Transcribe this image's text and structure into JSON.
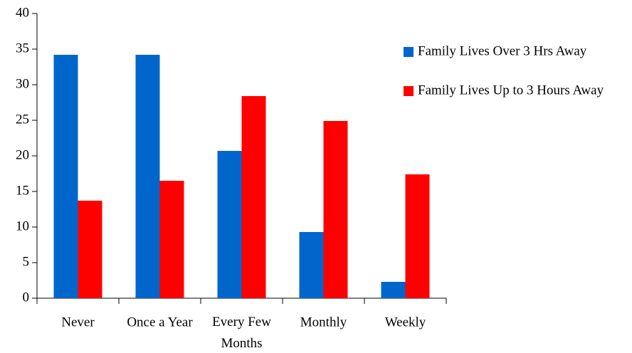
{
  "chart_data": {
    "type": "bar",
    "categories": [
      "Never",
      "Once a Year",
      "Every Few Months",
      "Monthly",
      "Weekly"
    ],
    "series": [
      {
        "name": "Family Lives Over 3 Hrs Away",
        "color": "#0066cc",
        "values": [
          34.2,
          34.2,
          20.7,
          9.3,
          2.3
        ]
      },
      {
        "name": "Family Lives Up to 3 Hours Away",
        "color": "#ff0000",
        "values": [
          13.7,
          16.5,
          28.4,
          24.9,
          17.4
        ]
      }
    ],
    "ylim": [
      0,
      40
    ],
    "yticks": [
      0,
      5,
      10,
      15,
      20,
      25,
      30,
      35,
      40
    ],
    "grid": false,
    "legend": "right"
  }
}
